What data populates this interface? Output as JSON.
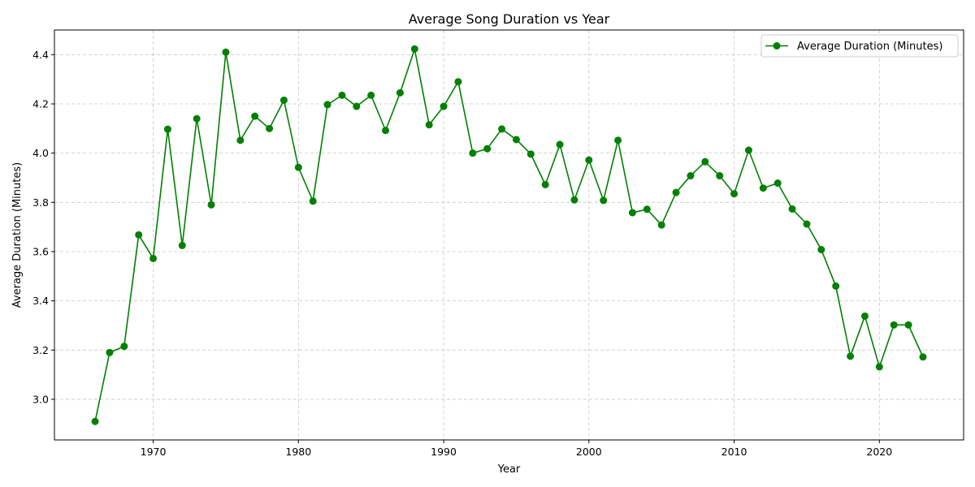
{
  "chart_data": {
    "type": "line",
    "title": "Average Song Duration vs Year",
    "xlabel": "Year",
    "ylabel": "Average Duration (Minutes)",
    "xlim": [
      1963.2,
      2025.8
    ],
    "ylim": [
      2.835,
      4.5
    ],
    "xticks": [
      1970,
      1980,
      1990,
      2000,
      2010,
      2020
    ],
    "yticks": [
      3.0,
      3.2,
      3.4,
      3.6,
      3.8,
      4.0,
      4.2,
      4.4
    ],
    "grid": true,
    "legend_position": "top-right",
    "series": [
      {
        "name": "Average Duration (Minutes)",
        "color": "#008000",
        "marker": "circle",
        "x": [
          1966,
          1967,
          1968,
          1969,
          1970,
          1971,
          1972,
          1973,
          1974,
          1975,
          1976,
          1977,
          1978,
          1979,
          1980,
          1981,
          1982,
          1983,
          1984,
          1985,
          1986,
          1987,
          1988,
          1989,
          1990,
          1991,
          1992,
          1993,
          1994,
          1995,
          1996,
          1997,
          1998,
          1999,
          2000,
          2001,
          2002,
          2003,
          2004,
          2005,
          2006,
          2007,
          2008,
          2009,
          2010,
          2011,
          2012,
          2013,
          2014,
          2015,
          2016,
          2017,
          2018,
          2019,
          2020,
          2021,
          2022,
          2023
        ],
        "values": [
          2.91,
          3.19,
          3.215,
          3.668,
          3.572,
          4.097,
          3.625,
          4.14,
          3.79,
          4.41,
          4.052,
          4.15,
          4.1,
          4.215,
          3.942,
          3.805,
          4.197,
          4.235,
          4.19,
          4.235,
          4.092,
          4.245,
          4.423,
          4.115,
          4.19,
          4.29,
          4.0,
          4.018,
          4.098,
          4.055,
          3.996,
          3.872,
          4.035,
          3.81,
          3.972,
          3.808,
          4.052,
          3.758,
          3.772,
          3.708,
          3.84,
          3.908,
          3.965,
          3.908,
          3.835,
          4.012,
          3.858,
          3.878,
          3.773,
          3.712,
          3.608,
          3.46,
          3.175,
          3.338,
          3.132,
          3.302,
          3.302,
          3.172
        ]
      }
    ]
  }
}
